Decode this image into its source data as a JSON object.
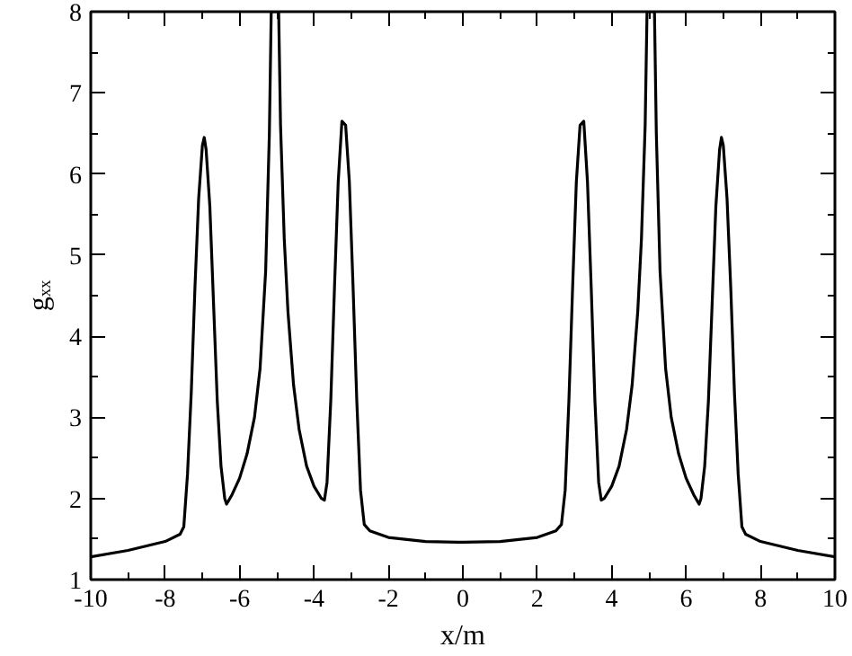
{
  "chart_data": {
    "type": "line",
    "xlabel": "x/m",
    "ylabel": "gₓₓ",
    "xlim": [
      -10,
      10
    ],
    "ylim": [
      1,
      8
    ],
    "xticks": [
      -10,
      -8,
      -6,
      -4,
      -2,
      0,
      2,
      4,
      6,
      8,
      10
    ],
    "yticks": [
      1,
      2,
      3,
      4,
      5,
      6,
      7,
      8
    ],
    "grid": false,
    "marker": "none",
    "line_style": "solid",
    "series": [
      {
        "color": "#000000",
        "x": [
          -10,
          -9,
          -8,
          -7.6,
          -7.5,
          -7.4,
          -7.3,
          -7.2,
          -7.1,
          -7.0,
          -6.95,
          -6.9,
          -6.8,
          -6.7,
          -6.6,
          -6.5,
          -6.4,
          -6.35,
          -6.2,
          -6.0,
          -5.8,
          -5.6,
          -5.45,
          -5.3,
          -5.2,
          -5.15,
          -4.95,
          -4.9,
          -4.8,
          -4.7,
          -4.55,
          -4.4,
          -4.2,
          -4.0,
          -3.8,
          -3.72,
          -3.65,
          -3.55,
          -3.45,
          -3.35,
          -3.25,
          -3.15,
          -3.05,
          -2.95,
          -2.85,
          -2.75,
          -2.65,
          -2.5,
          -2,
          -1,
          0,
          1,
          2,
          2.5,
          2.65,
          2.75,
          2.85,
          2.95,
          3.05,
          3.15,
          3.25,
          3.35,
          3.45,
          3.55,
          3.65,
          3.72,
          3.8,
          4.0,
          4.2,
          4.4,
          4.55,
          4.7,
          4.8,
          4.9,
          4.95,
          5.15,
          5.2,
          5.3,
          5.45,
          5.6,
          5.8,
          6.0,
          6.2,
          6.35,
          6.4,
          6.5,
          6.6,
          6.7,
          6.8,
          6.9,
          6.95,
          7.0,
          7.1,
          7.2,
          7.3,
          7.4,
          7.5,
          7.6,
          8,
          9,
          10
        ],
        "values": [
          1.28,
          1.36,
          1.47,
          1.56,
          1.65,
          2.3,
          3.3,
          4.6,
          5.7,
          6.35,
          6.45,
          6.3,
          5.6,
          4.4,
          3.2,
          2.4,
          2.0,
          1.93,
          2.05,
          2.25,
          2.55,
          3.0,
          3.6,
          4.8,
          6.5,
          8,
          8,
          6.6,
          5.2,
          4.3,
          3.4,
          2.85,
          2.4,
          2.15,
          2.0,
          1.98,
          2.2,
          3.2,
          4.6,
          5.9,
          6.65,
          6.6,
          5.9,
          4.6,
          3.2,
          2.1,
          1.68,
          1.6,
          1.52,
          1.47,
          1.46,
          1.47,
          1.52,
          1.6,
          1.68,
          2.1,
          3.2,
          4.6,
          5.9,
          6.6,
          6.65,
          5.9,
          4.6,
          3.2,
          2.2,
          1.98,
          2.0,
          2.15,
          2.4,
          2.85,
          3.4,
          4.3,
          5.2,
          6.6,
          8,
          8,
          6.5,
          4.8,
          3.6,
          3.0,
          2.55,
          2.25,
          2.05,
          1.93,
          2.0,
          2.4,
          3.2,
          4.4,
          5.6,
          6.3,
          6.45,
          6.35,
          5.7,
          4.6,
          3.3,
          2.3,
          1.65,
          1.56,
          1.47,
          1.36,
          1.28
        ]
      }
    ]
  }
}
